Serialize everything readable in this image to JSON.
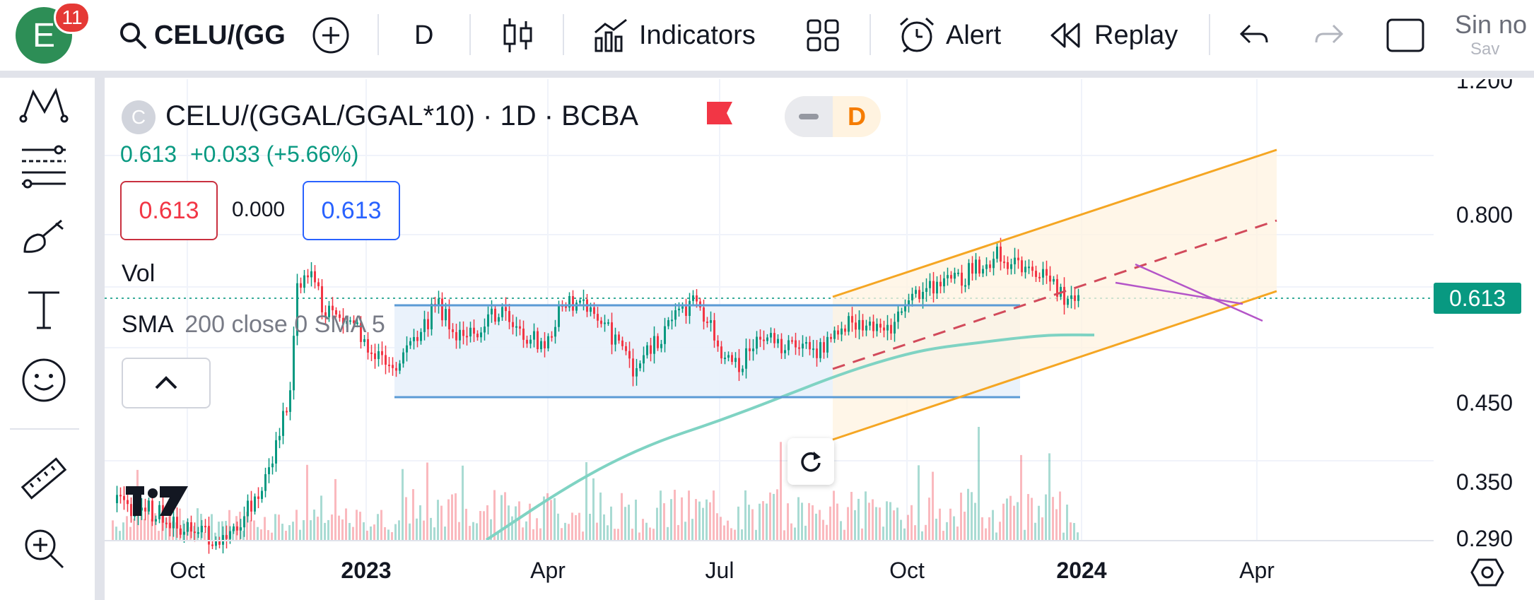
{
  "toolbar": {
    "avatar_letter": "E",
    "notification_count": "11",
    "symbol": "CELU/(GG",
    "interval": "D",
    "indicators_label": "Indicators",
    "alert_label": "Alert",
    "replay_label": "Replay",
    "save_title": "Sin no",
    "save_sub": "Sav"
  },
  "legend": {
    "symbol_badge": "C",
    "title": "CELU/(GGAL/GGAL*10) · 1D · BCBA",
    "mode_letter": "D",
    "price": "0.613",
    "change": "+0.033 (+5.66%)",
    "bid": "0.613",
    "spread": "0.000",
    "ask": "0.613",
    "vol_label": "Vol",
    "sma_label": "SMA",
    "sma_params": "200 close 0 SMA 5"
  },
  "price_axis": {
    "labels": [
      "1.200",
      "0.800",
      "0.450",
      "0.350",
      "0.290"
    ],
    "current_price": "0.613",
    "current_price_color": "#089981"
  },
  "time_axis": {
    "labels": [
      "Oct",
      "2023",
      "Apr",
      "Jul",
      "Oct",
      "2024",
      "Apr"
    ]
  },
  "colors": {
    "up": "#089981",
    "down": "#f23645",
    "sma": "#7fd3c3",
    "channel": "#f5a623",
    "rectangle": "#5b9bd5",
    "rectangle_fill": "#e8f1fb",
    "dashed_mid": "#d24a5b",
    "wedge": "#b455c8"
  },
  "icons": {
    "search": "search-icon",
    "add": "plus-circle-icon",
    "candles": "candlestick-icon",
    "indicators": "indicators-icon",
    "layouts": "layout-grid-icon",
    "alert": "alarm-clock-icon",
    "replay": "rewind-icon",
    "undo": "undo-icon",
    "redo": "redo-icon",
    "fullscreen": "square-icon"
  }
}
